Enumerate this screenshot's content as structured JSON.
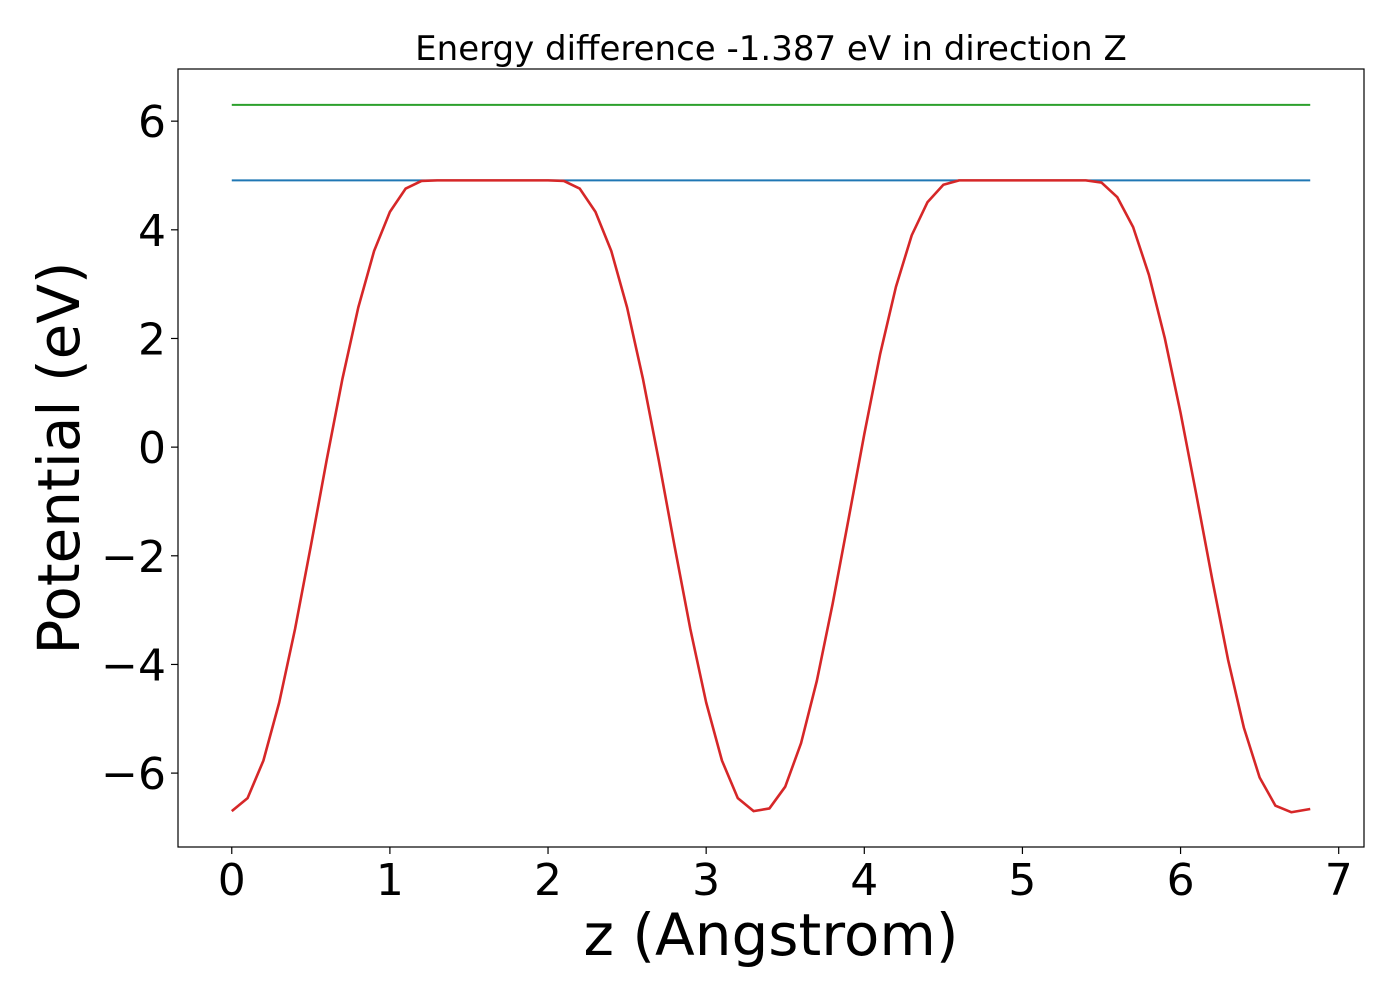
{
  "chart_data": {
    "type": "line",
    "title": "Energy difference -1.387 eV in direction Z",
    "xlabel": "z (Angstrom)",
    "ylabel": "Potential (eV)",
    "xlim": [
      -0.34,
      7.16
    ],
    "ylim": [
      -7.36,
      6.96
    ],
    "x_ticks": [
      0,
      1,
      2,
      3,
      4,
      5,
      6,
      7
    ],
    "x_tick_labels": [
      "0",
      "1",
      "2",
      "3",
      "4",
      "5",
      "6",
      "7"
    ],
    "y_ticks": [
      -6,
      -4,
      -2,
      0,
      2,
      4,
      6
    ],
    "y_tick_labels": [
      "−6",
      "−4",
      "−2",
      "0",
      "2",
      "4",
      "6"
    ],
    "grid": false,
    "series": [
      {
        "color": "#2ca02c",
        "style": "horizontal",
        "x": [
          0,
          6.82
        ],
        "y": [
          6.3,
          6.3
        ]
      },
      {
        "color": "#1f77b4",
        "style": "horizontal",
        "x": [
          0,
          6.82
        ],
        "y": [
          4.91,
          4.91
        ]
      },
      {
        "color": "#d62728",
        "style": "curve",
        "x": [
          0,
          0.1,
          0.2,
          0.3,
          0.4,
          0.5,
          0.6,
          0.7,
          0.8,
          0.9,
          1.0,
          1.1,
          1.2,
          1.3,
          1.4,
          1.5,
          1.6,
          1.7,
          1.8,
          1.9,
          2.0,
          2.1,
          2.2,
          2.3,
          2.4,
          2.5,
          2.6,
          2.7,
          2.8,
          2.9,
          3.0,
          3.1,
          3.2,
          3.3,
          3.4,
          3.5,
          3.6,
          3.7,
          3.8,
          3.9,
          4.0,
          4.1,
          4.2,
          4.3,
          4.4,
          4.5,
          4.6,
          4.7,
          4.8,
          4.9,
          5.0,
          5.1,
          5.2,
          5.3,
          5.4,
          5.5,
          5.6,
          5.7,
          5.8,
          5.9,
          6.0,
          6.1,
          6.2,
          6.3,
          6.4,
          6.5,
          6.6,
          6.7,
          6.82
        ],
        "y": [
          -6.7,
          -6.46,
          -5.77,
          -4.7,
          -3.35,
          -1.82,
          -0.24,
          1.26,
          2.57,
          3.61,
          4.33,
          4.76,
          4.9,
          4.91,
          4.91,
          4.91,
          4.91,
          4.91,
          4.91,
          4.91,
          4.91,
          4.9,
          4.76,
          4.33,
          3.61,
          2.57,
          1.26,
          -0.24,
          -1.82,
          -3.35,
          -4.7,
          -5.77,
          -6.46,
          -6.7,
          -6.65,
          -6.25,
          -5.45,
          -4.3,
          -2.88,
          -1.33,
          0.24,
          1.71,
          2.95,
          3.9,
          4.51,
          4.83,
          4.91,
          4.91,
          4.91,
          4.91,
          4.91,
          4.91,
          4.91,
          4.91,
          4.91,
          4.87,
          4.6,
          4.05,
          3.17,
          2.01,
          0.63,
          -0.88,
          -2.43,
          -3.91,
          -5.16,
          -6.08,
          -6.6,
          -6.72,
          -6.66
        ]
      }
    ]
  }
}
